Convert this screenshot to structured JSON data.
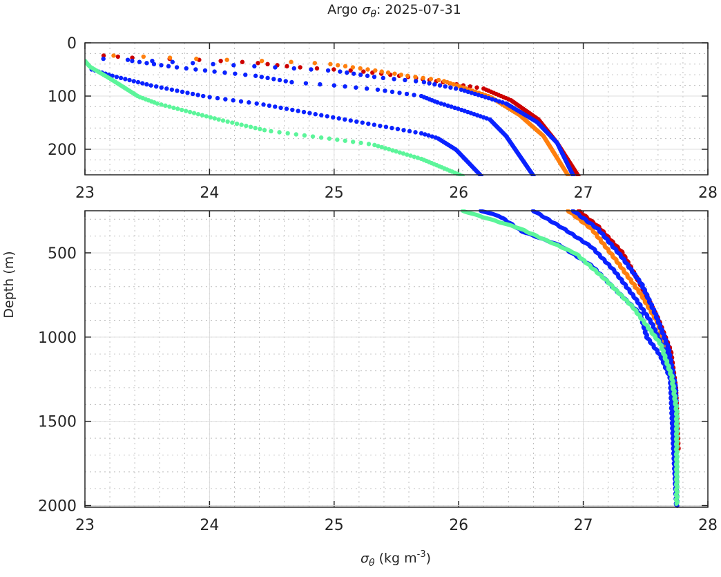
{
  "chart_data": {
    "type": "scatter",
    "title_prefix": "Argo ",
    "title_symbol": "σ",
    "title_subscript": "θ",
    "title_suffix": ": 2025-07-31",
    "xlabel_symbol": "σ",
    "xlabel_subscript": "θ",
    "xlabel_units": " (kg m",
    "xlabel_exponent": "-3",
    "xlabel_close": ")",
    "ylabel": "Depth (m)",
    "grid": true,
    "minor_grid": true,
    "panels": [
      {
        "name": "upper",
        "xlim": [
          23,
          28
        ],
        "ylim": [
          0,
          248
        ],
        "y_reversed": true,
        "xticks": [
          23,
          24,
          25,
          26,
          27,
          28
        ],
        "yticks": [
          0,
          100,
          200
        ],
        "xminor_step": 0.2,
        "yminor_step": 20,
        "style": "dots"
      },
      {
        "name": "lower",
        "xlim": [
          23,
          28
        ],
        "ylim": [
          250,
          2010
        ],
        "y_reversed": true,
        "xticks": [
          23,
          24,
          25,
          26,
          27,
          28
        ],
        "yticks": [
          500,
          1000,
          1500,
          2000
        ],
        "xminor_step": 0.2,
        "yminor_step": 100,
        "style": "line"
      }
    ],
    "series": [
      {
        "name": "profile-red",
        "color": "#cc0000",
        "points": [
          [
            23.15,
            24
          ],
          [
            23.38,
            28
          ],
          [
            23.83,
            31
          ],
          [
            24.35,
            37
          ],
          [
            24.66,
            45
          ],
          [
            25.2,
            53
          ],
          [
            25.63,
            65
          ],
          [
            26.2,
            86
          ],
          [
            26.42,
            108
          ],
          [
            26.64,
            144
          ],
          [
            26.79,
            188
          ],
          [
            26.96,
            250
          ],
          [
            27.12,
            344
          ],
          [
            27.31,
            496
          ],
          [
            27.47,
            701
          ],
          [
            27.6,
            893
          ],
          [
            27.7,
            1082
          ],
          [
            27.74,
            1303
          ],
          [
            27.76,
            1664
          ]
        ]
      },
      {
        "name": "profile-orange",
        "color": "#ff7f0e",
        "points": [
          [
            23.11,
            23
          ],
          [
            23.47,
            26
          ],
          [
            24.0,
            31
          ],
          [
            24.56,
            35
          ],
          [
            24.94,
            39
          ],
          [
            25.33,
            52
          ],
          [
            25.59,
            62
          ],
          [
            25.87,
            71
          ],
          [
            26.25,
            101
          ],
          [
            26.49,
            136
          ],
          [
            26.68,
            175
          ],
          [
            26.88,
            250
          ],
          [
            27.07,
            360
          ],
          [
            27.27,
            550
          ],
          [
            27.47,
            754
          ],
          [
            27.6,
            918
          ],
          [
            27.68,
            1098
          ],
          [
            27.72,
            1275
          ],
          [
            27.74,
            1439
          ],
          [
            27.75,
            1650
          ]
        ]
      },
      {
        "name": "profile-blue-1",
        "color": "#0a22ff",
        "points": [
          [
            23.05,
            29
          ],
          [
            23.54,
            34
          ],
          [
            24.11,
            41
          ],
          [
            24.61,
            47
          ],
          [
            25.02,
            53
          ],
          [
            25.35,
            65
          ],
          [
            25.7,
            73
          ],
          [
            26.02,
            88
          ],
          [
            26.38,
            114
          ],
          [
            26.63,
            149
          ],
          [
            26.79,
            188
          ],
          [
            26.92,
            250
          ],
          [
            27.12,
            360
          ],
          [
            27.31,
            525
          ],
          [
            27.47,
            688
          ],
          [
            27.58,
            865
          ],
          [
            27.68,
            1057
          ],
          [
            27.74,
            1303
          ],
          [
            27.75,
            1574
          ]
        ]
      },
      {
        "name": "profile-blue-2",
        "color": "#0a22ff",
        "points": [
          [
            23.35,
            33
          ],
          [
            23.7,
            45
          ],
          [
            24.04,
            54
          ],
          [
            24.37,
            62
          ],
          [
            24.66,
            74
          ],
          [
            25.0,
            80
          ],
          [
            25.35,
            88
          ],
          [
            25.7,
            100
          ],
          [
            25.83,
            112
          ],
          [
            26.01,
            125
          ],
          [
            26.25,
            144
          ],
          [
            26.38,
            175
          ],
          [
            26.6,
            250
          ],
          [
            26.85,
            360
          ],
          [
            27.07,
            467
          ],
          [
            27.25,
            607
          ],
          [
            27.43,
            783
          ],
          [
            27.55,
            918
          ],
          [
            27.66,
            1098
          ],
          [
            27.74,
            1303
          ],
          [
            27.75,
            1983
          ]
        ]
      },
      {
        "name": "profile-blue-3",
        "color": "#0a22ff",
        "points": [
          [
            23.04,
            49
          ],
          [
            23.22,
            62
          ],
          [
            23.53,
            80
          ],
          [
            23.97,
            101
          ],
          [
            24.41,
            115
          ],
          [
            24.85,
            134
          ],
          [
            25.18,
            148
          ],
          [
            25.7,
            170
          ],
          [
            25.83,
            179
          ],
          [
            25.98,
            201
          ],
          [
            26.18,
            250
          ],
          [
            26.33,
            283
          ],
          [
            26.51,
            373
          ],
          [
            26.81,
            455
          ],
          [
            27.07,
            578
          ],
          [
            27.25,
            713
          ],
          [
            27.46,
            865
          ],
          [
            27.51,
            1000
          ],
          [
            27.62,
            1110
          ],
          [
            27.7,
            1246
          ],
          [
            27.72,
            1574
          ],
          [
            27.75,
            2005
          ]
        ]
      },
      {
        "name": "profile-green",
        "color": "#5cf59a",
        "points": [
          [
            23.0,
            34
          ],
          [
            23.04,
            45
          ],
          [
            23.2,
            67
          ],
          [
            23.43,
            101
          ],
          [
            23.58,
            114
          ],
          [
            24.09,
            145
          ],
          [
            24.46,
            165
          ],
          [
            24.93,
            179
          ],
          [
            25.31,
            191
          ],
          [
            25.7,
            218
          ],
          [
            26.03,
            250
          ],
          [
            26.48,
            352
          ],
          [
            26.94,
            504
          ],
          [
            27.18,
            660
          ],
          [
            27.4,
            824
          ],
          [
            27.62,
            1041
          ],
          [
            27.71,
            1234
          ],
          [
            27.75,
            1439
          ],
          [
            27.75,
            1990
          ]
        ]
      }
    ]
  }
}
